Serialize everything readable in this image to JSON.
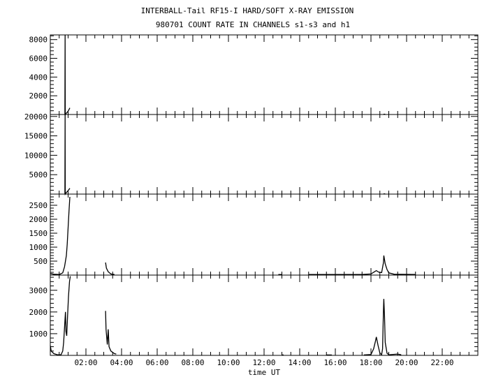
{
  "chart_data": {
    "type": "line",
    "title": "INTERBALL-Tail RF15-I HARD/SOFT X-RAY EMISSION",
    "subtitle": "980701  COUNT RATE IN CHANNELS s1-s3 and h1",
    "xlabel": "time UT",
    "xlim": [
      0,
      24
    ],
    "xticks": [
      {
        "v": 2,
        "label": "02:00"
      },
      {
        "v": 4,
        "label": "04:00"
      },
      {
        "v": 6,
        "label": "06:00"
      },
      {
        "v": 8,
        "label": "08:00"
      },
      {
        "v": 10,
        "label": "10:00"
      },
      {
        "v": 12,
        "label": "12:00"
      },
      {
        "v": 14,
        "label": "14:00"
      },
      {
        "v": 16,
        "label": "16:00"
      },
      {
        "v": 18,
        "label": "18:00"
      },
      {
        "v": 20,
        "label": "20:00"
      },
      {
        "v": 22,
        "label": "22:00"
      }
    ],
    "line_color": "#000000",
    "grid": false,
    "panels": [
      {
        "ylim": [
          0,
          8500
        ],
        "yticks": [
          2000,
          4000,
          6000,
          8000
        ],
        "points": [
          [
            0.82,
            0
          ],
          [
            0.83,
            8500
          ],
          [
            0.84,
            0
          ],
          [
            0.9,
            150
          ],
          [
            1.0,
            350
          ],
          [
            1.1,
            700
          ],
          null,
          [
            18.7,
            30
          ],
          [
            18.8,
            30
          ]
        ]
      },
      {
        "ylim": [
          0,
          20500
        ],
        "yticks": [
          5000,
          10000,
          15000,
          20000
        ],
        "points": [
          [
            0.82,
            0
          ],
          [
            0.83,
            20500
          ],
          [
            0.84,
            0
          ],
          [
            0.9,
            400
          ],
          [
            1.0,
            900
          ],
          [
            1.1,
            1500
          ],
          null,
          [
            18.7,
            60
          ],
          [
            18.8,
            60
          ]
        ]
      },
      {
        "ylim": [
          0,
          2900
        ],
        "yticks": [
          500,
          1000,
          1500,
          2000,
          2500
        ],
        "points": [
          [
            0,
            60
          ],
          [
            0.2,
            30
          ],
          [
            0.5,
            20
          ],
          [
            0.7,
            80
          ],
          [
            0.8,
            300
          ],
          [
            0.9,
            700
          ],
          [
            0.95,
            1100
          ],
          [
            1.0,
            1700
          ],
          [
            1.05,
            2300
          ],
          [
            1.1,
            2800
          ],
          null,
          [
            3.1,
            450
          ],
          [
            3.15,
            250
          ],
          [
            3.25,
            120
          ],
          [
            3.4,
            40
          ],
          [
            3.6,
            20
          ],
          null,
          [
            12.8,
            20
          ],
          [
            13.0,
            20
          ],
          null,
          [
            14.5,
            20
          ],
          [
            17.5,
            20
          ],
          [
            18.0,
            40
          ],
          [
            18.2,
            120
          ],
          [
            18.3,
            160
          ],
          [
            18.45,
            100
          ],
          [
            18.6,
            90
          ],
          [
            18.7,
            450
          ],
          [
            18.72,
            700
          ],
          [
            18.8,
            400
          ],
          [
            18.9,
            200
          ],
          [
            19.0,
            80
          ],
          [
            19.3,
            30
          ],
          [
            20.5,
            20
          ]
        ]
      },
      {
        "ylim": [
          0,
          3700
        ],
        "yticks": [
          1000,
          2000,
          3000
        ],
        "points": [
          [
            0,
            450
          ],
          [
            0.05,
            200
          ],
          [
            0.2,
            80
          ],
          [
            0.4,
            30
          ],
          [
            0.6,
            30
          ],
          [
            0.7,
            200
          ],
          [
            0.75,
            600
          ],
          [
            0.8,
            1300
          ],
          [
            0.85,
            2000
          ],
          [
            0.88,
            1100
          ],
          [
            0.92,
            900
          ],
          [
            0.97,
            1800
          ],
          [
            1.02,
            2700
          ],
          [
            1.08,
            3400
          ],
          [
            1.12,
            3650
          ],
          null,
          [
            3.1,
            2050
          ],
          [
            3.13,
            1200
          ],
          [
            3.2,
            500
          ],
          [
            3.25,
            1200
          ],
          [
            3.3,
            400
          ],
          [
            3.4,
            200
          ],
          [
            3.6,
            80
          ],
          [
            3.7,
            60
          ],
          null,
          [
            13.0,
            20
          ],
          [
            13.1,
            20
          ],
          null,
          [
            15.5,
            20
          ],
          [
            15.8,
            20
          ],
          null,
          [
            17.6,
            20
          ],
          [
            18.0,
            40
          ],
          [
            18.15,
            300
          ],
          [
            18.25,
            650
          ],
          [
            18.3,
            850
          ],
          [
            18.4,
            450
          ],
          [
            18.5,
            100
          ],
          [
            18.6,
            40
          ],
          [
            18.65,
            300
          ],
          [
            18.7,
            2100
          ],
          [
            18.72,
            2600
          ],
          [
            18.76,
            1800
          ],
          [
            18.8,
            600
          ],
          [
            18.9,
            100
          ],
          [
            19.0,
            30
          ],
          [
            19.5,
            60
          ],
          [
            19.7,
            30
          ]
        ]
      }
    ]
  }
}
